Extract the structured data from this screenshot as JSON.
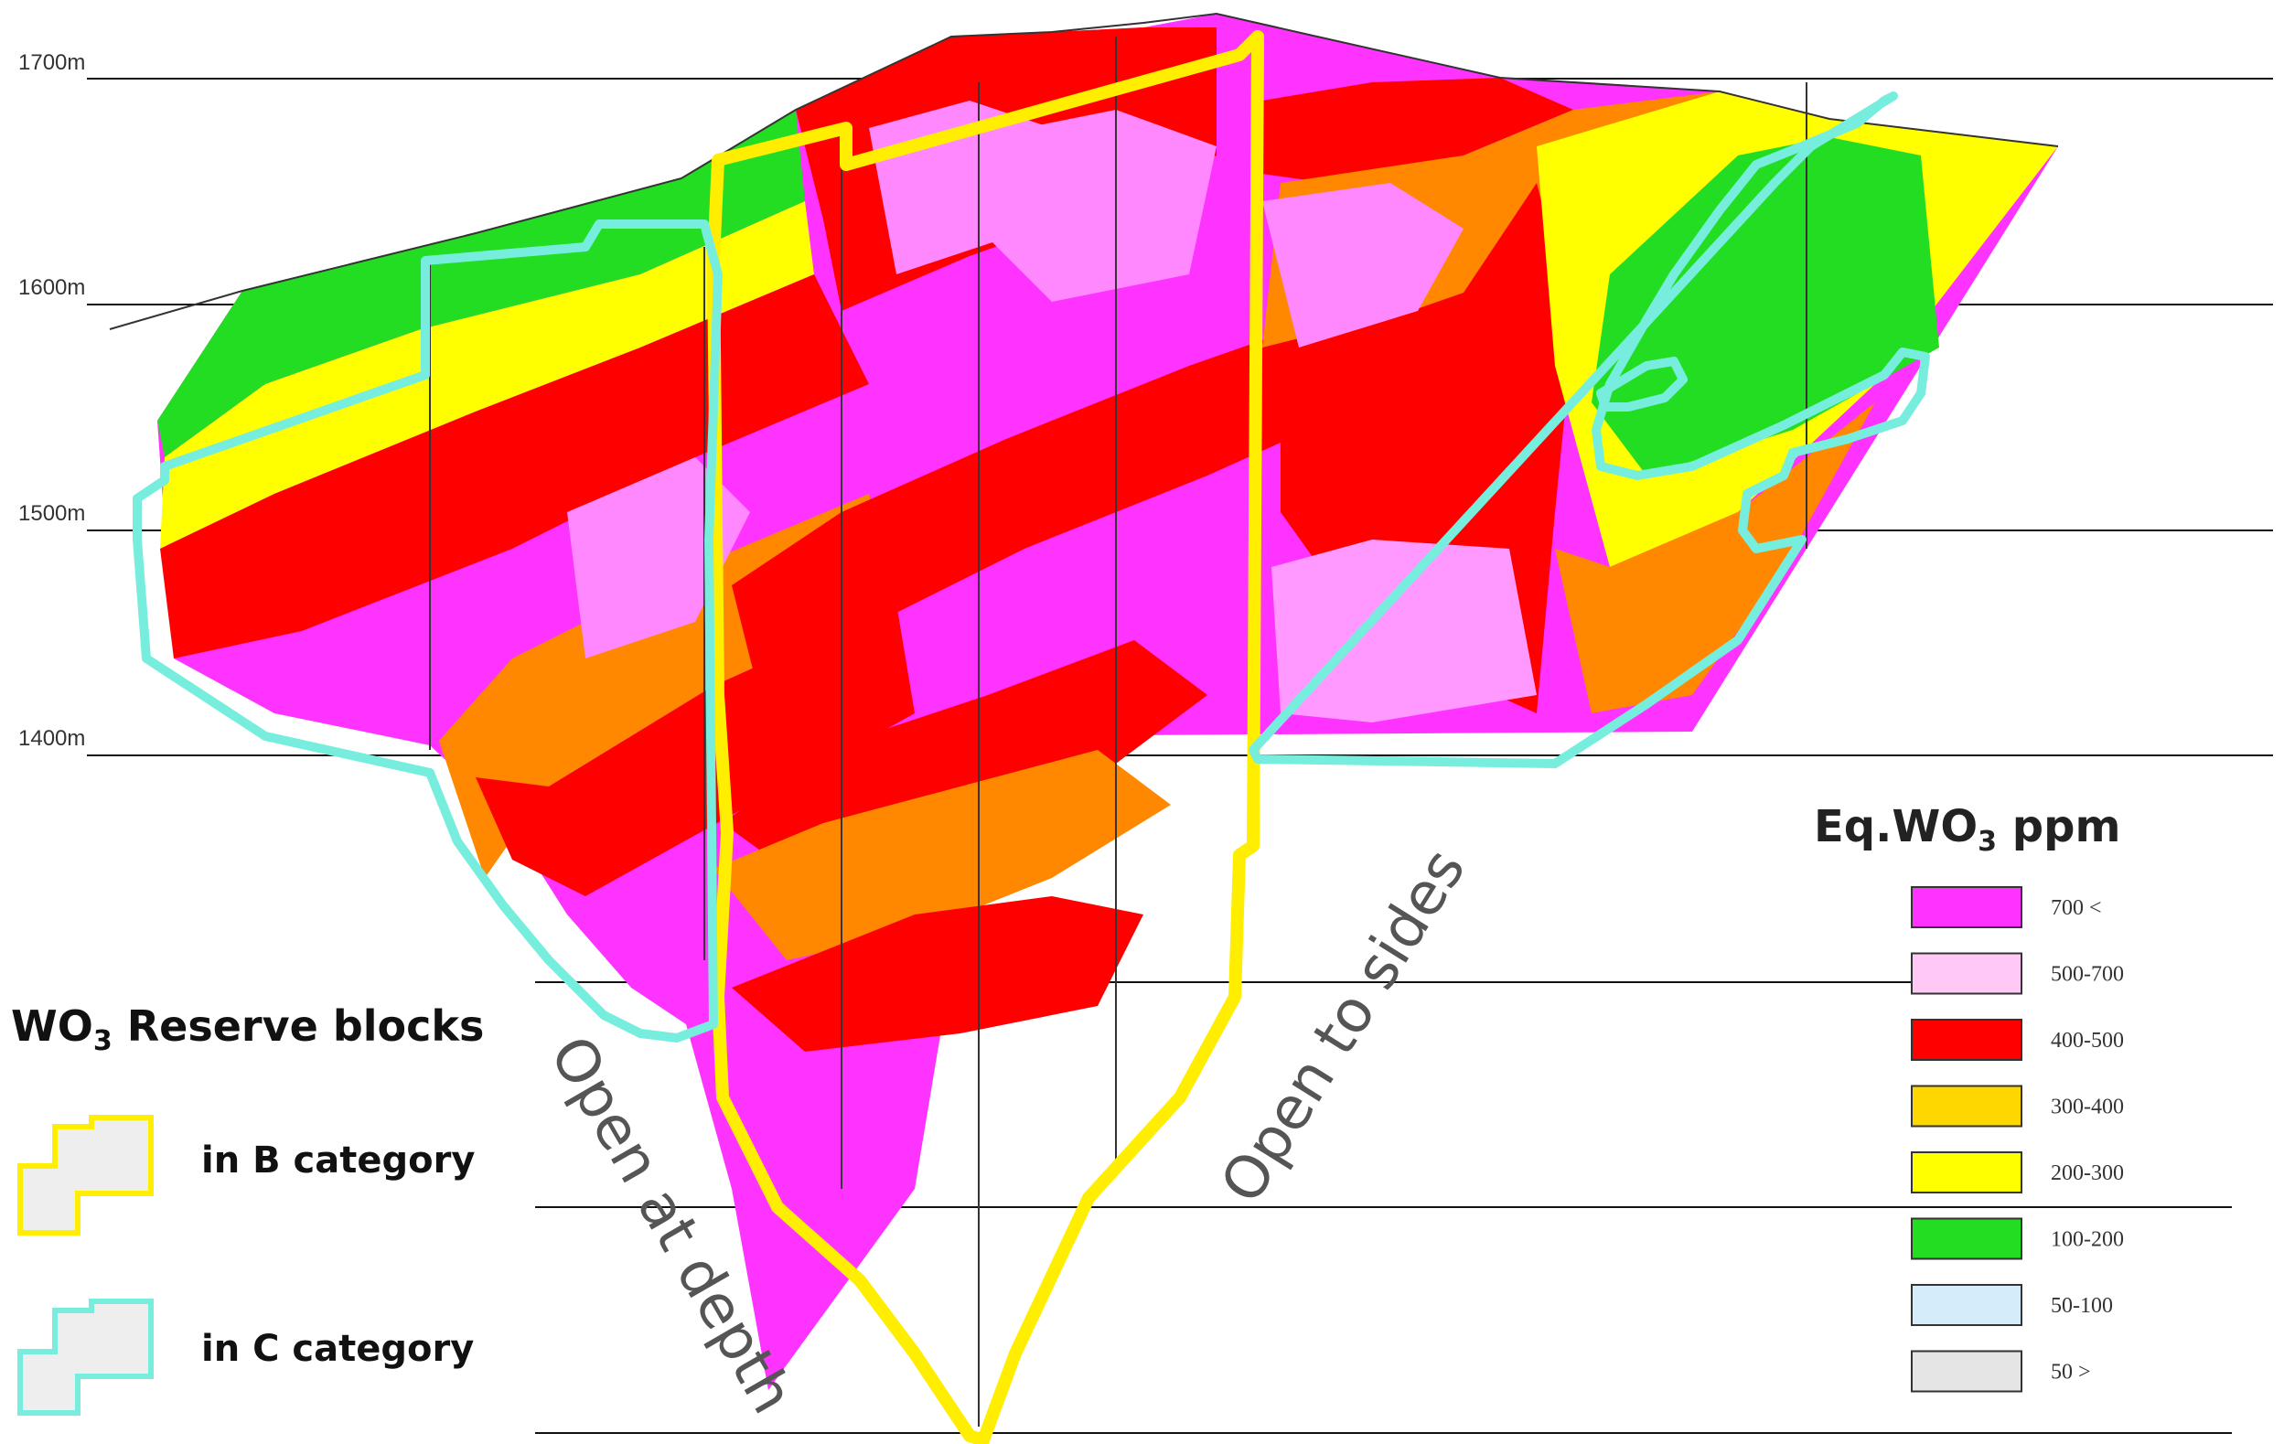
{
  "elevations": [
    "1700m",
    "1600m",
    "1500m",
    "1400m"
  ],
  "annotations": {
    "open_at_depth": "Open at depth",
    "open_to_sides": "Open to sides"
  },
  "grade_legend": {
    "title_main": "Eq.WO",
    "title_sub": "3",
    "title_tail": " ppm",
    "items": [
      {
        "label": "700 <",
        "color": "#ff33ff"
      },
      {
        "label": "500-700",
        "color": "#ffc8f5"
      },
      {
        "label": "400-500",
        "color": "#ff0000"
      },
      {
        "label": "300-400",
        "color": "#ffd700"
      },
      {
        "label": "200-300",
        "color": "#ffff00"
      },
      {
        "label": "100-200",
        "color": "#22dd22"
      },
      {
        "label": "50-100",
        "color": "#d5ecfb"
      },
      {
        "label": "50 >",
        "color": "#e5e5e5"
      }
    ]
  },
  "reserve_legend": {
    "title_main": "WO",
    "title_sub": "3",
    "title_tail": " Reserve blocks",
    "items": [
      {
        "label": "in B category",
        "color": "#ffee00"
      },
      {
        "label": "in C category",
        "color": "#77eedd"
      }
    ]
  }
}
